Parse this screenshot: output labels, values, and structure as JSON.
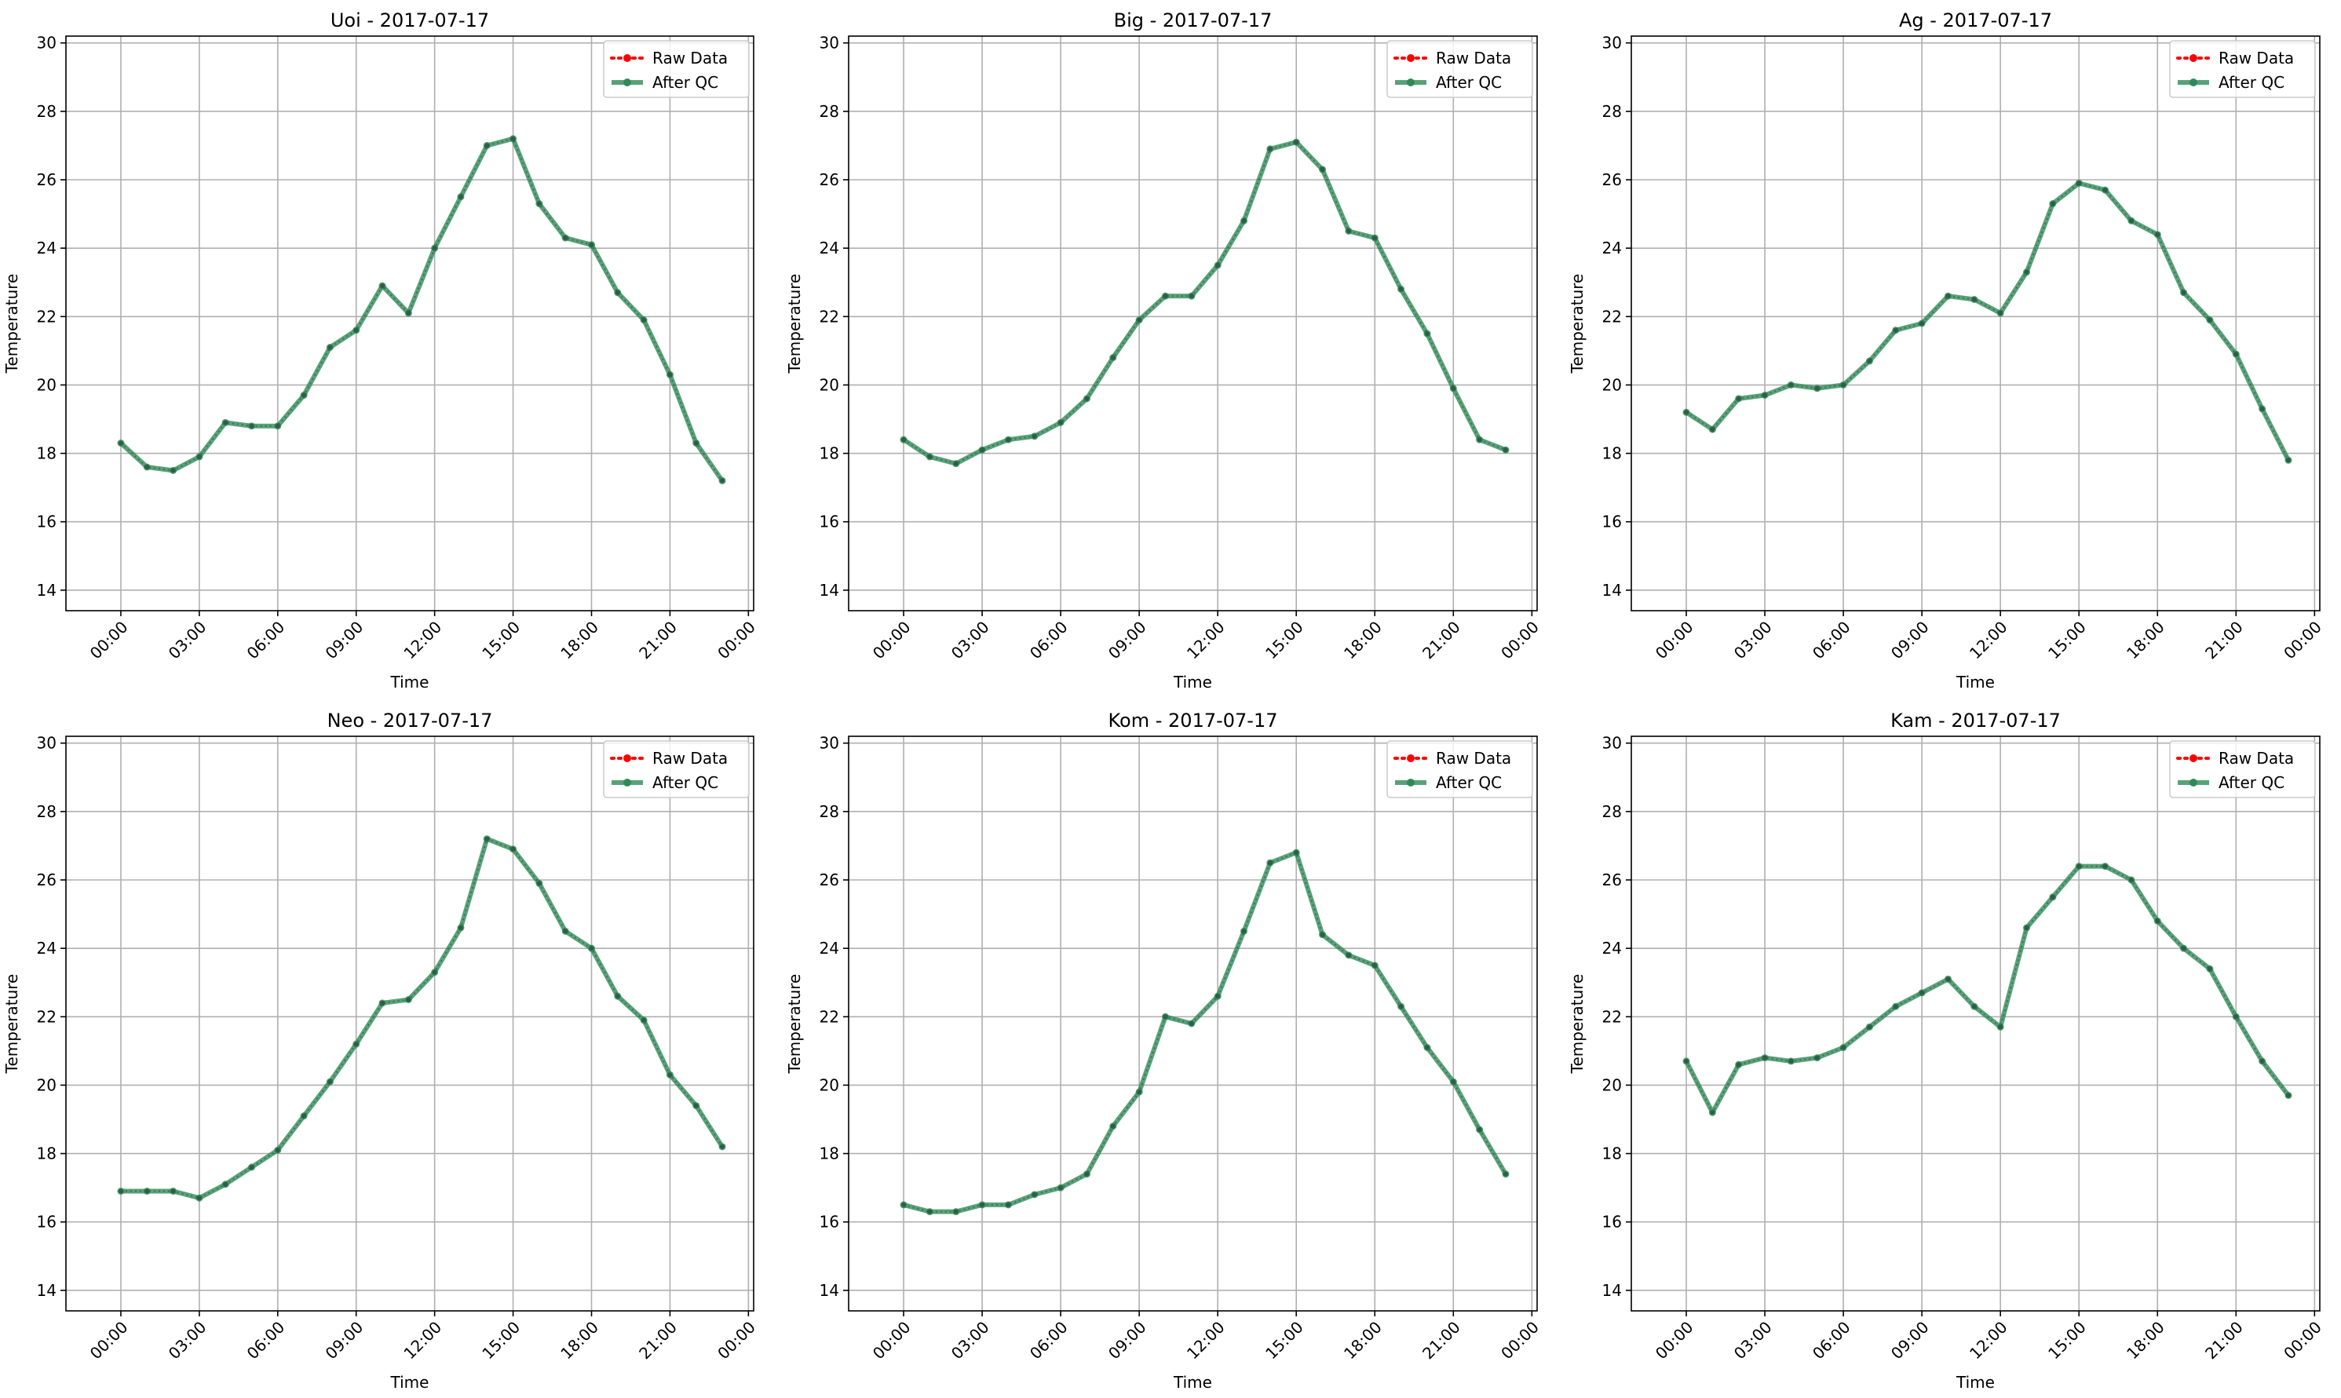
{
  "figure": {
    "date": "2017-07-17"
  },
  "legend": {
    "raw_label": "Raw Data",
    "qc_label": "After QC"
  },
  "colors": {
    "raw": "#ff0000",
    "qc": "#2e8b57",
    "grid": "#b0b0b0"
  },
  "chart_data": [
    {
      "type": "line",
      "title": "Uoi - 2017-07-17",
      "xlabel": "Time",
      "ylabel": "Temperature",
      "ylim": [
        13.4,
        30.2
      ],
      "yticks": [
        14,
        16,
        18,
        20,
        22,
        24,
        26,
        28,
        30
      ],
      "xlim": [
        "00:00",
        "00:00"
      ],
      "xticks": [
        "00:00",
        "03:00",
        "06:00",
        "09:00",
        "12:00",
        "15:00",
        "18:00",
        "21:00",
        "00:00"
      ],
      "x": [
        "00:00",
        "01:00",
        "02:00",
        "03:00",
        "04:00",
        "05:00",
        "06:00",
        "07:00",
        "08:00",
        "09:00",
        "10:00",
        "11:00",
        "12:00",
        "13:00",
        "14:00",
        "15:00",
        "16:00",
        "17:00",
        "18:00",
        "19:00",
        "20:00",
        "21:00",
        "22:00",
        "23:00"
      ],
      "grid": true,
      "legend_position": "top-right",
      "series": [
        {
          "name": "Raw Data",
          "values": [
            18.3,
            17.6,
            17.5,
            17.9,
            18.9,
            18.8,
            18.8,
            19.7,
            21.1,
            21.6,
            22.9,
            22.1,
            24.0,
            25.5,
            27.0,
            27.2,
            25.3,
            24.3,
            24.1,
            22.7,
            21.9,
            20.3,
            18.3,
            17.2
          ]
        },
        {
          "name": "After QC",
          "values": [
            18.3,
            17.6,
            17.5,
            17.9,
            18.9,
            18.8,
            18.8,
            19.7,
            21.1,
            21.6,
            22.9,
            22.1,
            24.0,
            25.5,
            27.0,
            27.2,
            25.3,
            24.3,
            24.1,
            22.7,
            21.9,
            20.3,
            18.3,
            17.2
          ]
        }
      ]
    },
    {
      "type": "line",
      "title": "Big - 2017-07-17",
      "xlabel": "Time",
      "ylabel": "Temperature",
      "ylim": [
        13.4,
        30.2
      ],
      "yticks": [
        14,
        16,
        18,
        20,
        22,
        24,
        26,
        28,
        30
      ],
      "xlim": [
        "00:00",
        "00:00"
      ],
      "xticks": [
        "00:00",
        "03:00",
        "06:00",
        "09:00",
        "12:00",
        "15:00",
        "18:00",
        "21:00",
        "00:00"
      ],
      "x": [
        "00:00",
        "01:00",
        "02:00",
        "03:00",
        "04:00",
        "05:00",
        "06:00",
        "07:00",
        "08:00",
        "09:00",
        "10:00",
        "11:00",
        "12:00",
        "13:00",
        "14:00",
        "15:00",
        "16:00",
        "17:00",
        "18:00",
        "19:00",
        "20:00",
        "21:00",
        "22:00",
        "23:00"
      ],
      "grid": true,
      "legend_position": "top-right",
      "series": [
        {
          "name": "Raw Data",
          "values": [
            18.4,
            17.9,
            17.7,
            18.1,
            18.4,
            18.5,
            18.9,
            19.6,
            20.8,
            21.9,
            22.6,
            22.6,
            23.5,
            24.8,
            26.9,
            27.1,
            26.3,
            24.5,
            24.3,
            22.8,
            21.5,
            19.9,
            18.4,
            18.1
          ]
        },
        {
          "name": "After QC",
          "values": [
            18.4,
            17.9,
            17.7,
            18.1,
            18.4,
            18.5,
            18.9,
            19.6,
            20.8,
            21.9,
            22.6,
            22.6,
            23.5,
            24.8,
            26.9,
            27.1,
            26.3,
            24.5,
            24.3,
            22.8,
            21.5,
            19.9,
            18.4,
            18.1
          ]
        }
      ]
    },
    {
      "type": "line",
      "title": "Ag - 2017-07-17",
      "xlabel": "Time",
      "ylabel": "Temperature",
      "ylim": [
        13.4,
        30.2
      ],
      "yticks": [
        14,
        16,
        18,
        20,
        22,
        24,
        26,
        28,
        30
      ],
      "xlim": [
        "00:00",
        "00:00"
      ],
      "xticks": [
        "00:00",
        "03:00",
        "06:00",
        "09:00",
        "12:00",
        "15:00",
        "18:00",
        "21:00",
        "00:00"
      ],
      "x": [
        "00:00",
        "01:00",
        "02:00",
        "03:00",
        "04:00",
        "05:00",
        "06:00",
        "07:00",
        "08:00",
        "09:00",
        "10:00",
        "11:00",
        "12:00",
        "13:00",
        "14:00",
        "15:00",
        "16:00",
        "17:00",
        "18:00",
        "19:00",
        "20:00",
        "21:00",
        "22:00",
        "23:00"
      ],
      "grid": true,
      "legend_position": "top-right",
      "series": [
        {
          "name": "Raw Data",
          "values": [
            19.2,
            18.7,
            19.6,
            19.7,
            20.0,
            19.9,
            20.0,
            20.7,
            21.6,
            21.8,
            22.6,
            22.5,
            22.1,
            23.3,
            25.3,
            25.9,
            25.7,
            24.8,
            24.4,
            22.7,
            21.9,
            20.9,
            19.3,
            17.8
          ]
        },
        {
          "name": "After QC",
          "values": [
            19.2,
            18.7,
            19.6,
            19.7,
            20.0,
            19.9,
            20.0,
            20.7,
            21.6,
            21.8,
            22.6,
            22.5,
            22.1,
            23.3,
            25.3,
            25.9,
            25.7,
            24.8,
            24.4,
            22.7,
            21.9,
            20.9,
            19.3,
            17.8
          ]
        }
      ]
    },
    {
      "type": "line",
      "title": "Neo - 2017-07-17",
      "xlabel": "Time",
      "ylabel": "Temperature",
      "ylim": [
        13.4,
        30.2
      ],
      "yticks": [
        14,
        16,
        18,
        20,
        22,
        24,
        26,
        28,
        30
      ],
      "xlim": [
        "00:00",
        "00:00"
      ],
      "xticks": [
        "00:00",
        "03:00",
        "06:00",
        "09:00",
        "12:00",
        "15:00",
        "18:00",
        "21:00",
        "00:00"
      ],
      "x": [
        "00:00",
        "01:00",
        "02:00",
        "03:00",
        "04:00",
        "05:00",
        "06:00",
        "07:00",
        "08:00",
        "09:00",
        "10:00",
        "11:00",
        "12:00",
        "13:00",
        "14:00",
        "15:00",
        "16:00",
        "17:00",
        "18:00",
        "19:00",
        "20:00",
        "21:00",
        "22:00",
        "23:00"
      ],
      "grid": true,
      "legend_position": "top-right",
      "series": [
        {
          "name": "Raw Data",
          "values": [
            16.9,
            16.9,
            16.9,
            16.7,
            17.1,
            17.6,
            18.1,
            19.1,
            20.1,
            21.2,
            22.4,
            22.5,
            23.3,
            24.6,
            27.2,
            26.9,
            25.9,
            24.5,
            24.0,
            22.6,
            21.9,
            20.3,
            19.4,
            18.2
          ]
        },
        {
          "name": "After QC",
          "values": [
            16.9,
            16.9,
            16.9,
            16.7,
            17.1,
            17.6,
            18.1,
            19.1,
            20.1,
            21.2,
            22.4,
            22.5,
            23.3,
            24.6,
            27.2,
            26.9,
            25.9,
            24.5,
            24.0,
            22.6,
            21.9,
            20.3,
            19.4,
            18.2
          ]
        }
      ]
    },
    {
      "type": "line",
      "title": "Kom - 2017-07-17",
      "xlabel": "Time",
      "ylabel": "Temperature",
      "ylim": [
        13.4,
        30.2
      ],
      "yticks": [
        14,
        16,
        18,
        20,
        22,
        24,
        26,
        28,
        30
      ],
      "xlim": [
        "00:00",
        "00:00"
      ],
      "xticks": [
        "00:00",
        "03:00",
        "06:00",
        "09:00",
        "12:00",
        "15:00",
        "18:00",
        "21:00",
        "00:00"
      ],
      "x": [
        "00:00",
        "01:00",
        "02:00",
        "03:00",
        "04:00",
        "05:00",
        "06:00",
        "07:00",
        "08:00",
        "09:00",
        "10:00",
        "11:00",
        "12:00",
        "13:00",
        "14:00",
        "15:00",
        "16:00",
        "17:00",
        "18:00",
        "19:00",
        "20:00",
        "21:00",
        "22:00",
        "23:00"
      ],
      "grid": true,
      "legend_position": "top-right",
      "series": [
        {
          "name": "Raw Data",
          "values": [
            16.5,
            16.3,
            16.3,
            16.5,
            16.5,
            16.8,
            17.0,
            17.4,
            18.8,
            19.8,
            22.0,
            21.8,
            22.6,
            24.5,
            26.5,
            26.8,
            24.4,
            23.8,
            23.5,
            22.3,
            21.1,
            20.1,
            18.7,
            17.4
          ]
        },
        {
          "name": "After QC",
          "values": [
            16.5,
            16.3,
            16.3,
            16.5,
            16.5,
            16.8,
            17.0,
            17.4,
            18.8,
            19.8,
            22.0,
            21.8,
            22.6,
            24.5,
            26.5,
            26.8,
            24.4,
            23.8,
            23.5,
            22.3,
            21.1,
            20.1,
            18.7,
            17.4
          ]
        }
      ]
    },
    {
      "type": "line",
      "title": "Kam - 2017-07-17",
      "xlabel": "Time",
      "ylabel": "Temperature",
      "ylim": [
        13.4,
        30.2
      ],
      "yticks": [
        14,
        16,
        18,
        20,
        22,
        24,
        26,
        28,
        30
      ],
      "xlim": [
        "00:00",
        "00:00"
      ],
      "xticks": [
        "00:00",
        "03:00",
        "06:00",
        "09:00",
        "12:00",
        "15:00",
        "18:00",
        "21:00",
        "00:00"
      ],
      "x": [
        "00:00",
        "01:00",
        "02:00",
        "03:00",
        "04:00",
        "05:00",
        "06:00",
        "07:00",
        "08:00",
        "09:00",
        "10:00",
        "11:00",
        "12:00",
        "13:00",
        "14:00",
        "15:00",
        "16:00",
        "17:00",
        "18:00",
        "19:00",
        "20:00",
        "21:00",
        "22:00",
        "23:00"
      ],
      "grid": true,
      "legend_position": "top-right",
      "series": [
        {
          "name": "Raw Data",
          "values": [
            20.7,
            19.2,
            20.6,
            20.8,
            20.7,
            20.8,
            21.1,
            21.7,
            22.3,
            22.7,
            23.1,
            22.3,
            21.7,
            24.6,
            25.5,
            26.4,
            26.4,
            26.0,
            24.8,
            24.0,
            23.4,
            22.0,
            20.7,
            19.7
          ]
        },
        {
          "name": "After QC",
          "values": [
            20.7,
            19.2,
            20.6,
            20.8,
            20.7,
            20.8,
            21.1,
            21.7,
            22.3,
            22.7,
            23.1,
            22.3,
            21.7,
            24.6,
            25.5,
            26.4,
            26.4,
            26.0,
            24.8,
            24.0,
            23.4,
            22.0,
            20.7,
            19.7
          ]
        }
      ]
    }
  ]
}
